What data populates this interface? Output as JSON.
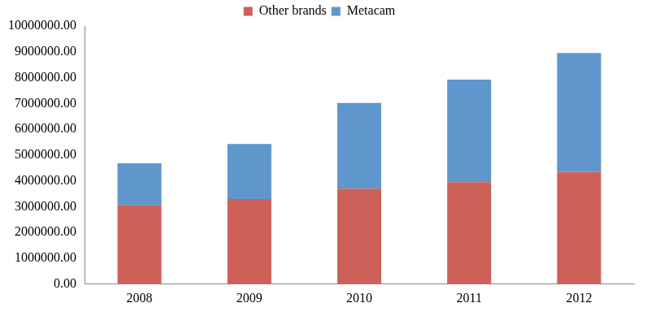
{
  "chart_data": {
    "type": "bar",
    "stacked": true,
    "grid": false,
    "legend": "top",
    "categories": [
      "2008",
      "2009",
      "2010",
      "2011",
      "2012"
    ],
    "series": [
      {
        "name": "Other brands",
        "color": "#CD6059",
        "values": [
          3050000,
          3300000,
          3700000,
          3950000,
          4350000
        ]
      },
      {
        "name": "Metacam",
        "color": "#5F96CC",
        "values": [
          1630000,
          2130000,
          3320000,
          3970000,
          4600000
        ]
      }
    ],
    "ylim": [
      0,
      10000000
    ],
    "yticks": [
      {
        "value": 0,
        "label": "0.00"
      },
      {
        "value": 1000000,
        "label": "1000000.00"
      },
      {
        "value": 2000000,
        "label": "2000000.00"
      },
      {
        "value": 3000000,
        "label": "3000000.00"
      },
      {
        "value": 4000000,
        "label": "4000000.00"
      },
      {
        "value": 5000000,
        "label": "5000000.00"
      },
      {
        "value": 6000000,
        "label": "6000000.00"
      },
      {
        "value": 7000000,
        "label": "7000000.00"
      },
      {
        "value": 8000000,
        "label": "8000000.00"
      },
      {
        "value": 9000000,
        "label": "9000000.00"
      },
      {
        "value": 10000000,
        "label": "10000000.00"
      }
    ]
  }
}
